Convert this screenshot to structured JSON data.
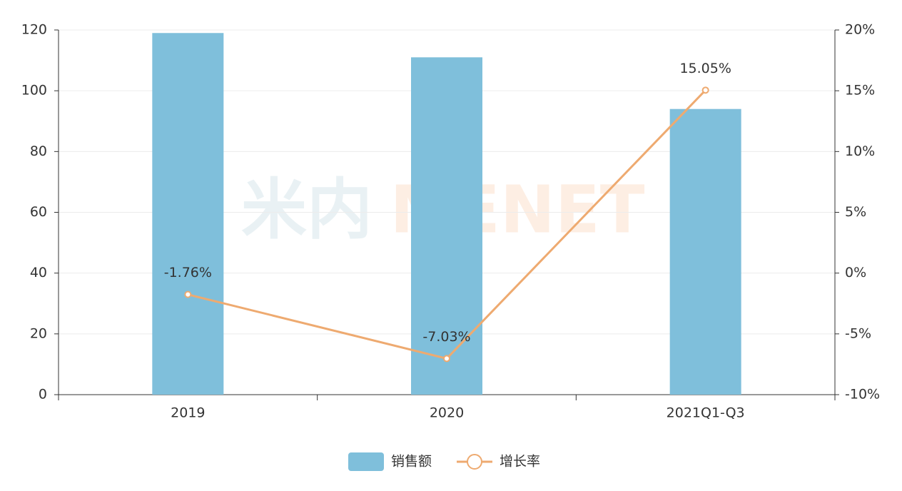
{
  "chart_data": {
    "type": "bar",
    "categories": [
      "2019",
      "2020",
      "2021Q1-Q3"
    ],
    "series": [
      {
        "name": "销售额",
        "type": "bar",
        "color": "#7fbfdb",
        "values": [
          119,
          111,
          94
        ]
      },
      {
        "name": "增长率",
        "type": "line",
        "axis": "y2",
        "color": "#eeaa70",
        "values": [
          -1.76,
          -7.03,
          15.05
        ],
        "value_labels": [
          "-1.76%",
          "-7.03%",
          "15.05%"
        ]
      }
    ],
    "ylim": [
      0,
      120
    ],
    "yticks": [
      0,
      20,
      40,
      60,
      80,
      100,
      120
    ],
    "y2lim": [
      -10,
      20
    ],
    "y2ticks": [
      {
        "value": -10,
        "label": "-10%"
      },
      {
        "value": -5,
        "label": "-5%"
      },
      {
        "value": 0,
        "label": "0%"
      },
      {
        "value": 5,
        "label": "5%"
      },
      {
        "value": 10,
        "label": "10%"
      },
      {
        "value": 15,
        "label": "15%"
      },
      {
        "value": 20,
        "label": "20%"
      }
    ],
    "grid": true,
    "legend": "bottom",
    "watermark": [
      "米内",
      "MENET"
    ]
  }
}
